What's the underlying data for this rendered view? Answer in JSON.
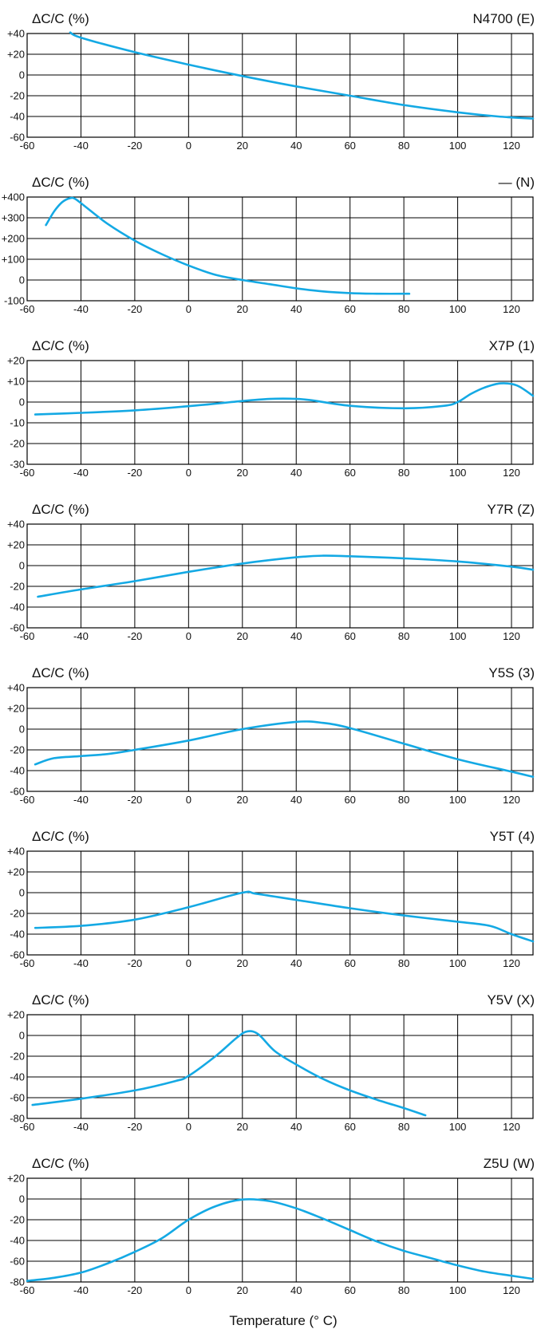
{
  "page": {
    "x_axis_title": "Temperature (° C)",
    "curve_color": "#14a9e4",
    "line_color": "#000000"
  },
  "chart_data": [
    {
      "type": "line",
      "title": "N4700 (E)",
      "ylabel": "ΔC/C (%)",
      "xlim": [
        -60,
        128
      ],
      "ylim": [
        -60,
        40
      ],
      "x_ticks": [
        "-60",
        "-40",
        "-20",
        "0",
        "20",
        "40",
        "60",
        "80",
        "100",
        "120"
      ],
      "y_ticks": [
        "+40",
        "+20",
        "0",
        "-20",
        "-40",
        "-60"
      ],
      "series": [
        {
          "x": [
            -44,
            -40,
            -20,
            0,
            20,
            40,
            60,
            80,
            100,
            115,
            128
          ],
          "y": [
            41,
            36,
            22,
            10,
            -1,
            -11,
            -20,
            -29,
            -36,
            -40,
            -42
          ]
        }
      ]
    },
    {
      "type": "line",
      "title": "— (N)",
      "ylabel": "ΔC/C (%)",
      "xlim": [
        -60,
        128
      ],
      "ylim": [
        -100,
        400
      ],
      "x_ticks": [
        "-60",
        "-40",
        "-20",
        "0",
        "20",
        "40",
        "60",
        "80",
        "100",
        "120"
      ],
      "y_ticks": [
        "+400",
        "+300",
        "+200",
        "+100",
        "0",
        "-100"
      ],
      "series": [
        {
          "x": [
            -53,
            -50,
            -47,
            -44,
            -42,
            -38,
            -30,
            -20,
            -10,
            0,
            10,
            20,
            30,
            40,
            50,
            60,
            70,
            82
          ],
          "y": [
            265,
            330,
            375,
            395,
            390,
            350,
            270,
            190,
            125,
            70,
            25,
            0,
            -20,
            -40,
            -55,
            -63,
            -66,
            -66
          ]
        }
      ]
    },
    {
      "type": "line",
      "title": "X7P (1)",
      "ylabel": "ΔC/C (%)",
      "xlim": [
        -60,
        128
      ],
      "ylim": [
        -30,
        20
      ],
      "x_ticks": [
        "-60",
        "-40",
        "-20",
        "0",
        "20",
        "40",
        "60",
        "80",
        "100",
        "120"
      ],
      "y_ticks": [
        "+20",
        "+10",
        "0",
        "-10",
        "-20",
        "-30"
      ],
      "series": [
        {
          "x": [
            -57,
            -40,
            -20,
            0,
            20,
            30,
            38,
            45,
            60,
            80,
            95,
            100,
            105,
            110,
            116,
            122,
            128
          ],
          "y": [
            -6,
            -5.2,
            -4,
            -2,
            0.5,
            1.5,
            1.6,
            1,
            -1.8,
            -3,
            -1.8,
            0,
            4,
            7,
            9,
            8,
            3
          ]
        }
      ]
    },
    {
      "type": "line",
      "title": "Y7R (Z)",
      "ylabel": "ΔC/C (%)",
      "xlim": [
        -60,
        128
      ],
      "ylim": [
        -60,
        40
      ],
      "x_ticks": [
        "-60",
        "-40",
        "-20",
        "0",
        "20",
        "40",
        "60",
        "80",
        "100",
        "120"
      ],
      "y_ticks": [
        "+40",
        "+20",
        "0",
        "-20",
        "-40",
        "-60"
      ],
      "series": [
        {
          "x": [
            -56,
            -40,
            -20,
            0,
            20,
            40,
            50,
            60,
            80,
            100,
            120,
            128
          ],
          "y": [
            -30,
            -23,
            -15,
            -6,
            2,
            8,
            9.5,
            9,
            7,
            4,
            -1,
            -4
          ]
        }
      ]
    },
    {
      "type": "line",
      "title": "Y5S (3)",
      "ylabel": "ΔC/C (%)",
      "xlim": [
        -60,
        128
      ],
      "ylim": [
        -60,
        40
      ],
      "x_ticks": [
        "-60",
        "-40",
        "-20",
        "0",
        "20",
        "40",
        "60",
        "80",
        "100",
        "120"
      ],
      "y_ticks": [
        "+40",
        "+20",
        "0",
        "-20",
        "-40",
        "-60"
      ],
      "series": [
        {
          "x": [
            -57,
            -50,
            -40,
            -30,
            -20,
            0,
            20,
            40,
            50,
            60,
            80,
            100,
            120,
            128
          ],
          "y": [
            -34,
            -28,
            -26,
            -24,
            -20,
            -11,
            0,
            7,
            6,
            1,
            -14,
            -29,
            -41,
            -46
          ]
        }
      ]
    },
    {
      "type": "line",
      "title": "Y5T (4)",
      "ylabel": "ΔC/C (%)",
      "xlim": [
        -60,
        128
      ],
      "ylim": [
        -60,
        40
      ],
      "x_ticks": [
        "-60",
        "-40",
        "-20",
        "0",
        "20",
        "40",
        "60",
        "80",
        "100",
        "120"
      ],
      "y_ticks": [
        "+40",
        "+20",
        "0",
        "-20",
        "-40",
        "-60"
      ],
      "series": [
        {
          "x": [
            -57,
            -40,
            -20,
            0,
            20,
            25,
            40,
            60,
            80,
            100,
            112,
            120,
            128
          ],
          "y": [
            -34,
            -32,
            -26,
            -14,
            0,
            -1,
            -7,
            -15,
            -22,
            -28,
            -32,
            -40,
            -47
          ]
        }
      ]
    },
    {
      "type": "line",
      "title": "Y5V (X)",
      "ylabel": "ΔC/C (%)",
      "xlim": [
        -60,
        128
      ],
      "ylim": [
        -80,
        20
      ],
      "x_ticks": [
        "-60",
        "-40",
        "-20",
        "0",
        "20",
        "40",
        "60",
        "80",
        "100",
        "120"
      ],
      "y_ticks": [
        "+20",
        "0",
        "-20",
        "-40",
        "-60",
        "-80"
      ],
      "series": [
        {
          "x": [
            -58,
            -40,
            -20,
            -5,
            0,
            10,
            18,
            22,
            26,
            32,
            40,
            50,
            60,
            70,
            80,
            88
          ],
          "y": [
            -67,
            -61,
            -53,
            -44,
            -39,
            -20,
            -2,
            4,
            1,
            -15,
            -28,
            -42,
            -53,
            -62,
            -70,
            -77
          ]
        }
      ]
    },
    {
      "type": "line",
      "title": "Z5U (W)",
      "ylabel": "ΔC/C (%)",
      "xlim": [
        -60,
        128
      ],
      "ylim": [
        -80,
        20
      ],
      "x_ticks": [
        "-60",
        "-40",
        "-20",
        "0",
        "20",
        "40",
        "60",
        "80",
        "100",
        "120"
      ],
      "y_ticks": [
        "+20",
        "0",
        "-20",
        "-40",
        "-60",
        "-80"
      ],
      "series": [
        {
          "x": [
            -60,
            -50,
            -40,
            -30,
            -20,
            -10,
            0,
            10,
            20,
            30,
            40,
            50,
            60,
            70,
            80,
            90,
            100,
            110,
            120,
            128
          ],
          "y": [
            -79,
            -76,
            -71,
            -62,
            -51,
            -38,
            -20,
            -7,
            -0.5,
            -2,
            -9,
            -19,
            -30,
            -41,
            -50,
            -57,
            -64,
            -70,
            -74,
            -77
          ]
        }
      ]
    }
  ]
}
